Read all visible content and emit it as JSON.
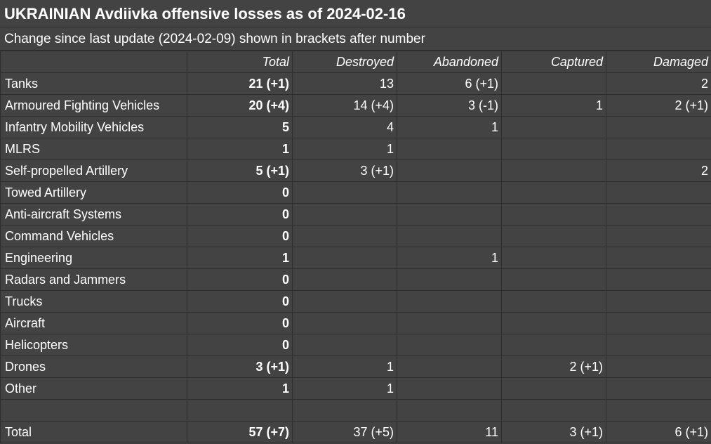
{
  "title": "UKRAINIAN Avdiivka offensive losses as of 2024-02-16",
  "subtitle": "Change since last update (2024-02-09) shown in brackets after number",
  "columns": [
    "",
    "Total",
    "Destroyed",
    "Abandoned",
    "Captured",
    "Damaged"
  ],
  "rows": [
    {
      "category": "Tanks",
      "total": "21 (+1)",
      "destroyed": "13",
      "abandoned": "6 (+1)",
      "captured": "",
      "damaged": "2"
    },
    {
      "category": "Armoured Fighting Vehicles",
      "total": "20 (+4)",
      "destroyed": "14 (+4)",
      "abandoned": "3 (-1)",
      "captured": "1",
      "damaged": "2 (+1)"
    },
    {
      "category": "Infantry Mobility Vehicles",
      "total": "5",
      "destroyed": "4",
      "abandoned": "1",
      "captured": "",
      "damaged": ""
    },
    {
      "category": "MLRS",
      "total": "1",
      "destroyed": "1",
      "abandoned": "",
      "captured": "",
      "damaged": ""
    },
    {
      "category": "Self-propelled Artillery",
      "total": "5 (+1)",
      "destroyed": "3 (+1)",
      "abandoned": "",
      "captured": "",
      "damaged": "2"
    },
    {
      "category": "Towed Artillery",
      "total": "0",
      "destroyed": "",
      "abandoned": "",
      "captured": "",
      "damaged": ""
    },
    {
      "category": "Anti-aircraft Systems",
      "total": "0",
      "destroyed": "",
      "abandoned": "",
      "captured": "",
      "damaged": ""
    },
    {
      "category": "Command Vehicles",
      "total": "0",
      "destroyed": "",
      "abandoned": "",
      "captured": "",
      "damaged": ""
    },
    {
      "category": "Engineering",
      "total": "1",
      "destroyed": "",
      "abandoned": "1",
      "captured": "",
      "damaged": ""
    },
    {
      "category": "Radars and Jammers",
      "total": "0",
      "destroyed": "",
      "abandoned": "",
      "captured": "",
      "damaged": ""
    },
    {
      "category": "Trucks",
      "total": "0",
      "destroyed": "",
      "abandoned": "",
      "captured": "",
      "damaged": ""
    },
    {
      "category": "Aircraft",
      "total": "0",
      "destroyed": "",
      "abandoned": "",
      "captured": "",
      "damaged": ""
    },
    {
      "category": "Helicopters",
      "total": "0",
      "destroyed": "",
      "abandoned": "",
      "captured": "",
      "damaged": ""
    },
    {
      "category": "Drones",
      "total": "3 (+1)",
      "destroyed": "1",
      "abandoned": "",
      "captured": "2 (+1)",
      "damaged": ""
    },
    {
      "category": "Other",
      "total": "1",
      "destroyed": "1",
      "abandoned": "",
      "captured": "",
      "damaged": ""
    }
  ],
  "totals": {
    "category": "Total",
    "total": "57 (+7)",
    "destroyed": "37 (+5)",
    "abandoned": "11",
    "captured": "3 (+1)",
    "damaged": "6 (+1)"
  }
}
